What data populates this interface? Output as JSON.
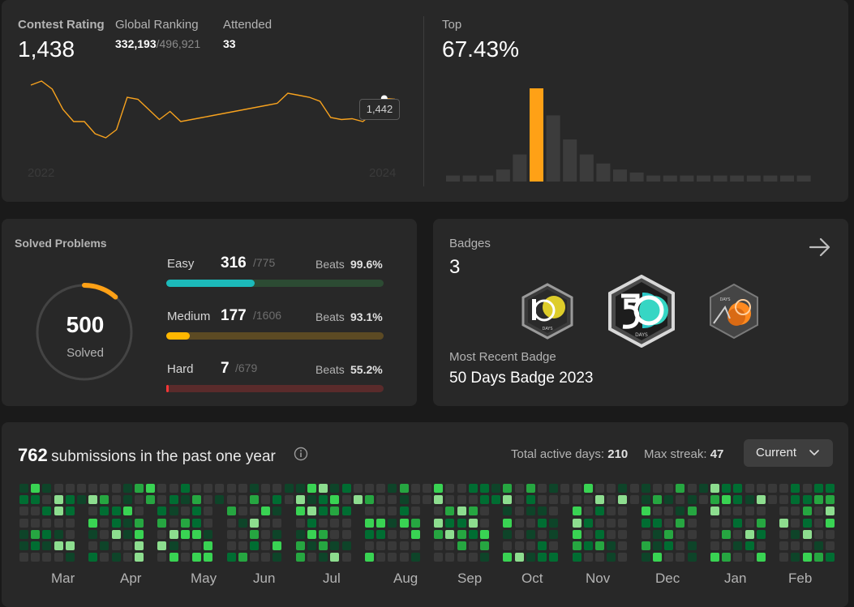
{
  "rating": {
    "contest_label": "Contest Rating",
    "contest_value": "1,438",
    "global_label": "Global Ranking",
    "global_rank": "332,193",
    "global_total": "/496,921",
    "attended_label": "Attended",
    "attended_value": "33",
    "year_start": "2022",
    "year_end": "2024",
    "tooltip": "1,442",
    "top_label": "Top",
    "top_value": "67.43%",
    "line_color": "#f7a21e"
  },
  "chart_data": [
    {
      "type": "line",
      "title": "",
      "xlabel": "",
      "ylabel": "",
      "x_range": [
        "2022",
        "2024"
      ],
      "series": [
        {
          "values": [
            1530,
            1540,
            1520,
            1470,
            1440,
            1440,
            1410,
            1400,
            1420,
            1500,
            1495,
            1470,
            1445,
            1465,
            1440,
            1445,
            1450,
            1455,
            1460,
            1465,
            1470,
            1475,
            1480,
            1485,
            1510,
            1505,
            1500,
            1490,
            1450,
            1445,
            1447,
            1440,
            1462,
            1497,
            1495
          ]
        }
      ],
      "highlight": {
        "value": 1442
      }
    },
    {
      "type": "bar",
      "title": "",
      "values": [
        2,
        2,
        2,
        4,
        9,
        31,
        22,
        14,
        9,
        6,
        4,
        3,
        2,
        2,
        2,
        2,
        2,
        2,
        2,
        2,
        2,
        2
      ],
      "highlight_index": 5,
      "highlight_color": "#ffa116",
      "bar_color": "#3c3c3c"
    }
  ],
  "solved": {
    "title": "Solved Problems",
    "total": "500",
    "total_label": "Solved",
    "ring_fraction": 0.115,
    "ring_color": "#ffa116",
    "rows": [
      {
        "name": "Easy",
        "count": "316",
        "total": "/775",
        "beats_label": "Beats",
        "beats": "99.6%",
        "fraction": 0.408,
        "fill": "#1cbaba",
        "track": "#2c4b33"
      },
      {
        "name": "Medium",
        "count": "177",
        "total": "/1606",
        "beats_label": "Beats",
        "beats": "93.1%",
        "fraction": 0.11,
        "fill": "#ffb700",
        "track": "#5c4a23"
      },
      {
        "name": "Hard",
        "count": "7",
        "total": "/679",
        "beats_label": "Beats",
        "beats": "55.2%",
        "fraction": 0.01,
        "fill": "#f63737",
        "track": "#5a2b2b"
      }
    ]
  },
  "badges": {
    "title": "Badges",
    "count": "3",
    "recent_label": "Most Recent Badge",
    "recent_name": "50 Days Badge 2023",
    "badge_names": [
      "100-days-badge",
      "50-days-badge",
      "days-badge-2023"
    ]
  },
  "submissions": {
    "count": "762",
    "text": "submissions in the past one year",
    "active_label": "Total active days:",
    "active_value": "210",
    "streak_label": "Max streak:",
    "streak_value": "47",
    "dropdown": "Current",
    "months": [
      "Mar",
      "Apr",
      "May",
      "Jun",
      "Jul",
      "Aug",
      "Sep",
      "Oct",
      "Nov",
      "Dec",
      "Jan",
      "Feb"
    ],
    "colors": {
      "empty": "#393939",
      "l1": "#0e4429",
      "l2": "#006d32",
      "l3": "#26a641",
      "l4": "#39d353",
      "l5": "#8ddd8f"
    }
  }
}
